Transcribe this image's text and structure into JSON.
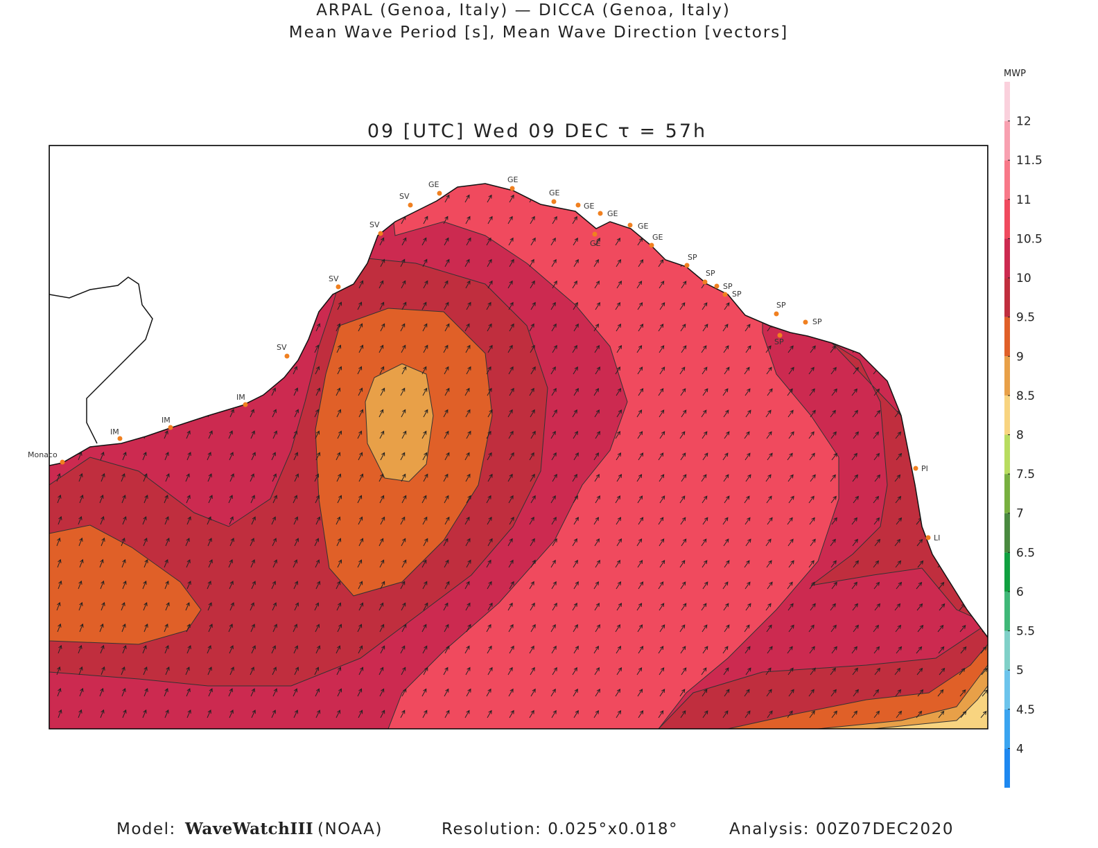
{
  "header": {
    "line1": "ARPAL (Genoa, Italy)  —  DICCA (Genoa, Italy)",
    "line2": "Mean Wave Period [s], Mean Wave Direction [vectors]"
  },
  "map": {
    "time_label": "09 [UTC] Wed 09 DEC  τ = 57h"
  },
  "places": [
    "Monaco",
    "IM",
    "IM",
    "IM",
    "SV",
    "SV",
    "SV",
    "SV",
    "GE",
    "GE",
    "GE",
    "GE",
    "GE",
    "GE",
    "GE",
    "GE",
    "SP",
    "SP",
    "SP",
    "SP",
    "SP",
    "SP",
    "SP",
    "PI",
    "LI"
  ],
  "colorbar": {
    "label": "MWP",
    "range": [
      3.5,
      12.5
    ],
    "ticks": [
      4,
      4.5,
      5,
      5.5,
      6,
      6.5,
      7,
      7.5,
      8,
      8.5,
      9,
      9.5,
      10,
      10.5,
      11,
      11.5,
      12
    ],
    "colors": [
      "#1e88f0",
      "#3aa4f0",
      "#6cc4ec",
      "#80d0c8",
      "#40b878",
      "#10a040",
      "#4a8a40",
      "#78b040",
      "#b8dc60",
      "#f8d480",
      "#e8a048",
      "#e06028",
      "#c02e3e",
      "#cc2a50",
      "#f04a5e",
      "#f87888",
      "#f8a0b0",
      "#fad0dc"
    ]
  },
  "footer": {
    "model_label": "Model:",
    "model_name": "WaveWatchIII",
    "model_agency": "(NOAA)",
    "resolution": "Resolution: 0.025°x0.018°",
    "analysis": "Analysis: 00Z07DEC2020"
  }
}
